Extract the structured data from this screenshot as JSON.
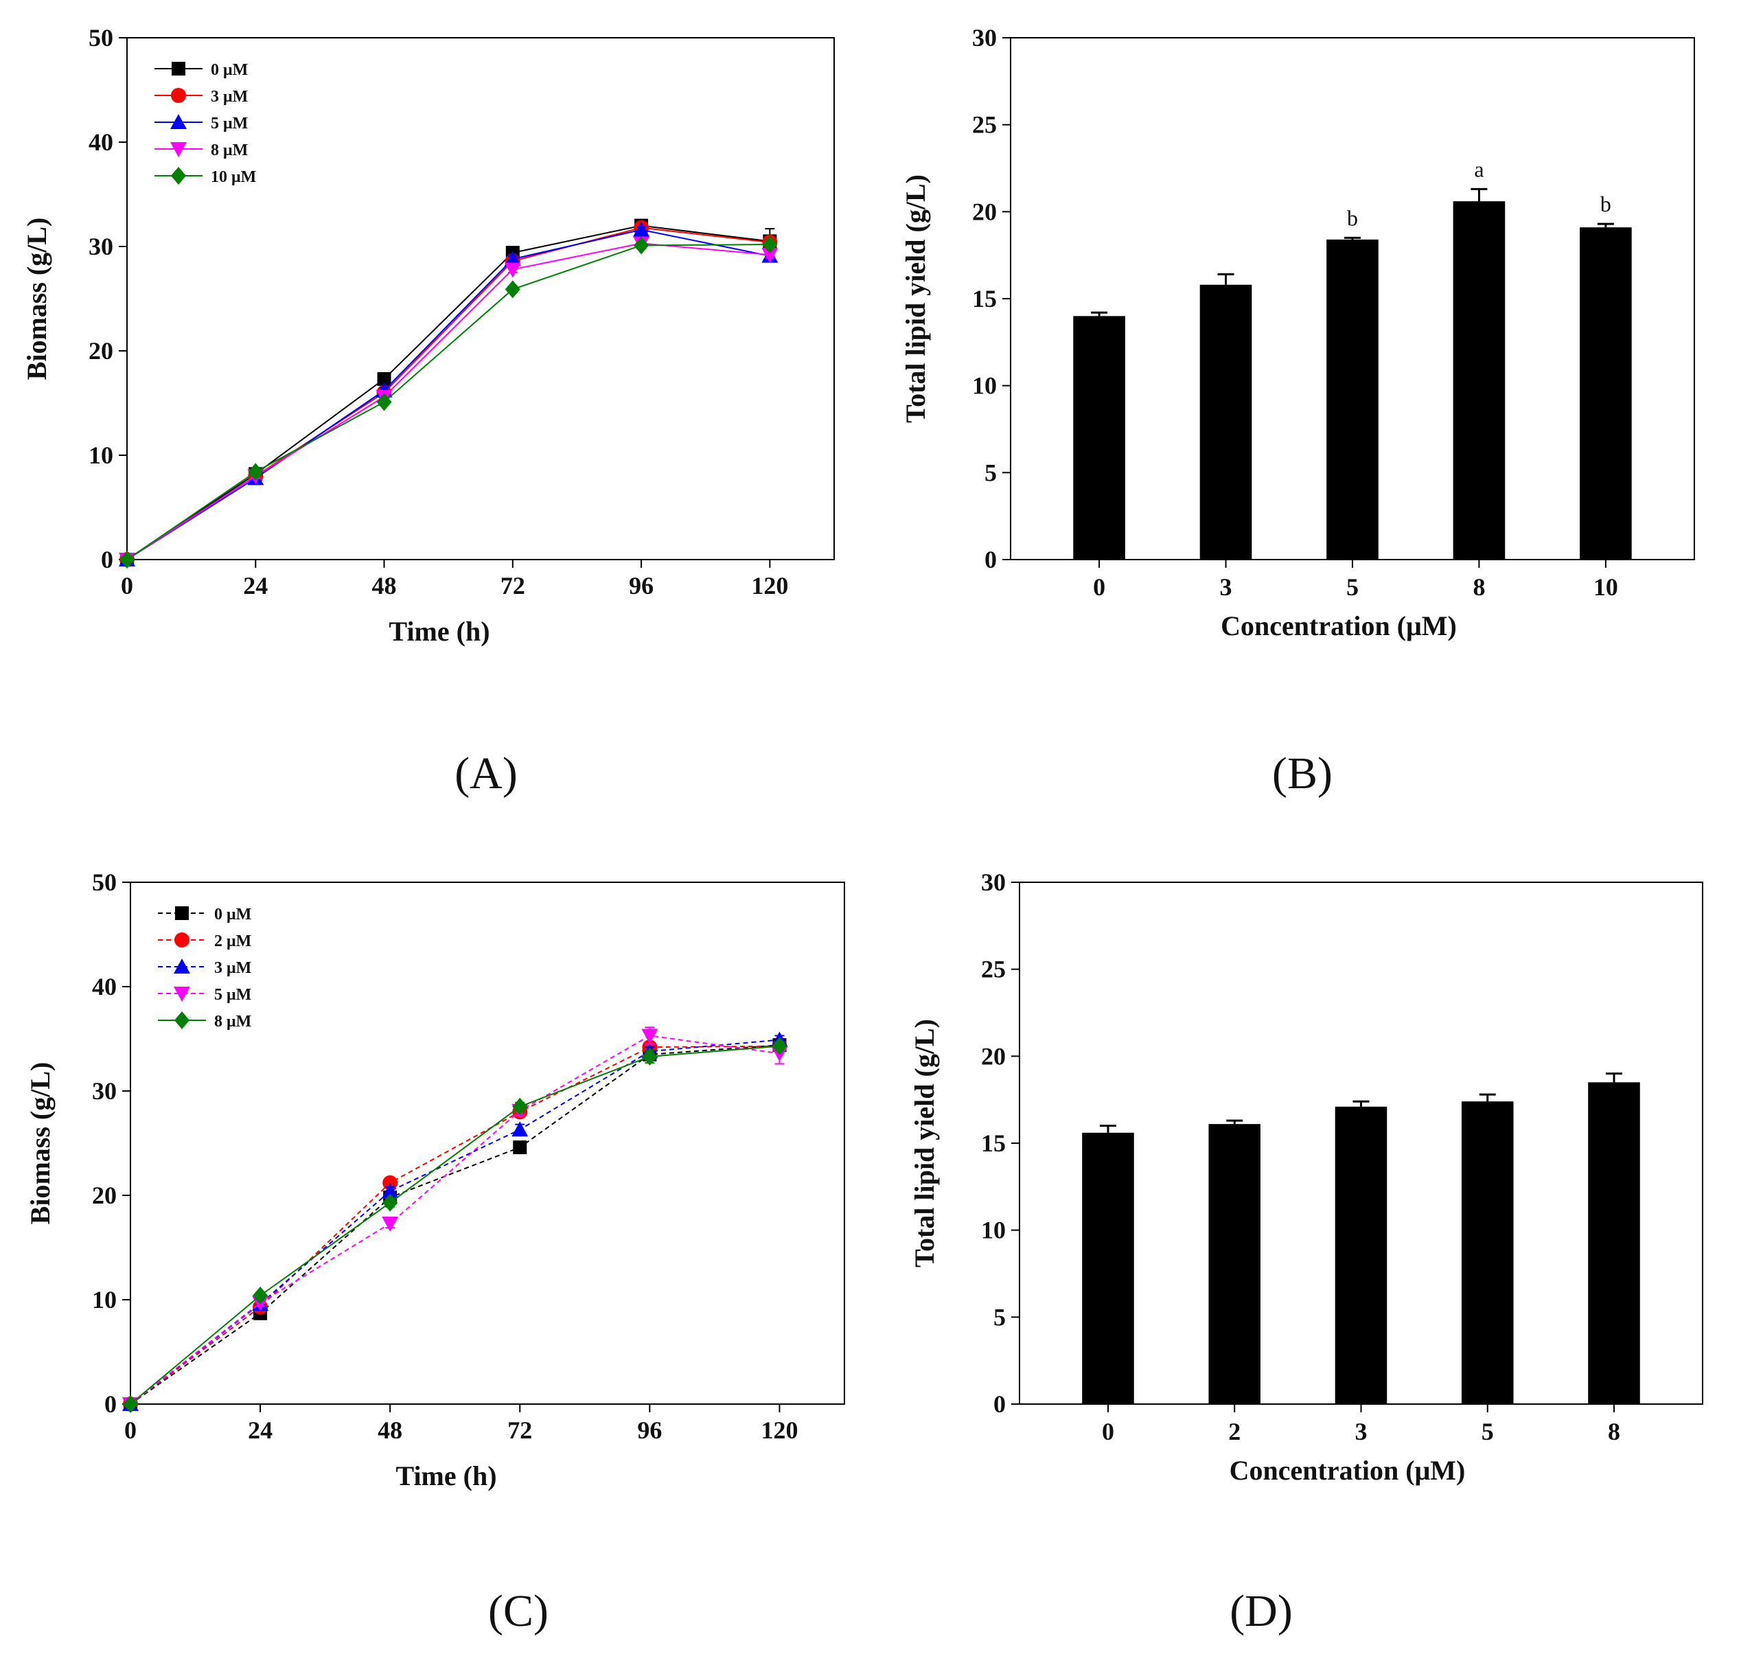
{
  "colors": {
    "ink": "#000000",
    "bar": "#000000"
  },
  "chart_data": [
    {
      "panel": "(A)",
      "type": "line",
      "xlabel": "Time (h)",
      "ylabel": "Biomass (g/L)",
      "x": [
        0,
        24,
        48,
        72,
        96,
        120
      ],
      "xlim": [
        0,
        132
      ],
      "ylim": [
        0,
        50
      ],
      "xticks": [
        "0",
        "24",
        "48",
        "72",
        "96",
        "120"
      ],
      "yticks": [
        "0",
        "10",
        "20",
        "30",
        "40",
        "50"
      ],
      "legend_position": "top-left",
      "series": [
        {
          "name": "0 μM",
          "color": "#000000",
          "marker": "square",
          "dashed": false,
          "values": [
            0,
            8.2,
            17.3,
            29.4,
            32.0,
            30.5
          ],
          "errors": [
            0,
            0.2,
            0.4,
            0.3,
            0.3,
            1.2
          ]
        },
        {
          "name": "3 μM",
          "color": "#ff0000",
          "marker": "circle",
          "dashed": false,
          "values": [
            0,
            8.0,
            16.0,
            28.6,
            31.8,
            30.4
          ],
          "errors": [
            0,
            0.2,
            0.3,
            0.3,
            0.3,
            0.4
          ]
        },
        {
          "name": "5 μM",
          "color": "#0000ff",
          "marker": "triangle-up",
          "dashed": false,
          "values": [
            0,
            7.8,
            16.2,
            28.8,
            31.6,
            29.1
          ],
          "errors": [
            0,
            0.2,
            0.3,
            0.3,
            0.3,
            0.4
          ]
        },
        {
          "name": "8 μM",
          "color": "#ff00ff",
          "marker": "triangle-down",
          "dashed": false,
          "values": [
            0,
            8.0,
            15.6,
            27.8,
            30.3,
            29.2
          ],
          "errors": [
            0,
            0.2,
            0.3,
            0.3,
            0.3,
            0.3
          ]
        },
        {
          "name": "10 μM",
          "color": "#008000",
          "marker": "diamond",
          "dashed": false,
          "values": [
            0,
            8.4,
            15.1,
            25.9,
            30.1,
            30.2
          ],
          "errors": [
            0,
            0.2,
            0.3,
            0.3,
            0.3,
            0.3
          ]
        }
      ]
    },
    {
      "panel": "(B)",
      "type": "bar",
      "xlabel": "Concentration (μM)",
      "ylabel": "Total lipid yield (g/L)",
      "categories": [
        "0",
        "3",
        "5",
        "8",
        "10"
      ],
      "values": [
        14.0,
        15.8,
        18.4,
        20.6,
        19.1
      ],
      "errors": [
        0.2,
        0.6,
        0.1,
        0.7,
        0.2
      ],
      "annotations": [
        "",
        "",
        "b",
        "a",
        "b"
      ],
      "ylim": [
        0,
        30
      ],
      "yticks": [
        "0",
        "5",
        "10",
        "15",
        "20",
        "25",
        "30"
      ]
    },
    {
      "panel": "(C)",
      "type": "line",
      "xlabel": "Time (h)",
      "ylabel": "Biomass (g/L)",
      "x": [
        0,
        24,
        48,
        72,
        96,
        120
      ],
      "xlim": [
        0,
        132
      ],
      "ylim": [
        0,
        50
      ],
      "xticks": [
        "0",
        "24",
        "48",
        "72",
        "96",
        "120"
      ],
      "yticks": [
        "0",
        "10",
        "20",
        "30",
        "40",
        "50"
      ],
      "legend_position": "top-left",
      "series": [
        {
          "name": "0 μM",
          "color": "#000000",
          "marker": "square",
          "dashed": true,
          "values": [
            0,
            8.7,
            19.8,
            24.6,
            33.5,
            34.4
          ],
          "errors": [
            0,
            0.3,
            0.4,
            0.4,
            0.4,
            0.5
          ]
        },
        {
          "name": "2 μM",
          "color": "#ff0000",
          "marker": "circle",
          "dashed": true,
          "values": [
            0,
            9.3,
            21.2,
            28.0,
            34.2,
            34.3
          ],
          "errors": [
            0,
            0.3,
            0.4,
            0.4,
            0.4,
            0.5
          ]
        },
        {
          "name": "3 μM",
          "color": "#0000ff",
          "marker": "triangle-up",
          "dashed": true,
          "values": [
            0,
            9.6,
            20.4,
            26.3,
            33.8,
            34.9
          ],
          "errors": [
            0,
            0.3,
            0.4,
            0.5,
            0.4,
            0.4
          ]
        },
        {
          "name": "5 μM",
          "color": "#ff00ff",
          "marker": "triangle-down",
          "dashed": true,
          "values": [
            0,
            9.7,
            17.3,
            28.1,
            35.3,
            33.6
          ],
          "errors": [
            0,
            0.3,
            0.4,
            0.4,
            0.8,
            1.0
          ]
        },
        {
          "name": "8 μM",
          "color": "#008000",
          "marker": "diamond",
          "dashed": false,
          "values": [
            0,
            10.4,
            19.3,
            28.5,
            33.3,
            34.3
          ],
          "errors": [
            0,
            0.3,
            0.4,
            0.4,
            0.6,
            0.4
          ]
        }
      ]
    },
    {
      "panel": "(D)",
      "type": "bar",
      "xlabel": "Concentration (μM)",
      "ylabel": "Total lipid yield (g/L)",
      "categories": [
        "0",
        "2",
        "3",
        "5",
        "8"
      ],
      "values": [
        15.6,
        16.1,
        17.1,
        17.4,
        18.5
      ],
      "errors": [
        0.4,
        0.2,
        0.3,
        0.4,
        0.5
      ],
      "annotations": [
        "",
        "",
        "",
        "",
        ""
      ],
      "ylim": [
        0,
        30
      ],
      "yticks": [
        "0",
        "5",
        "10",
        "15",
        "20",
        "25",
        "30"
      ]
    }
  ]
}
